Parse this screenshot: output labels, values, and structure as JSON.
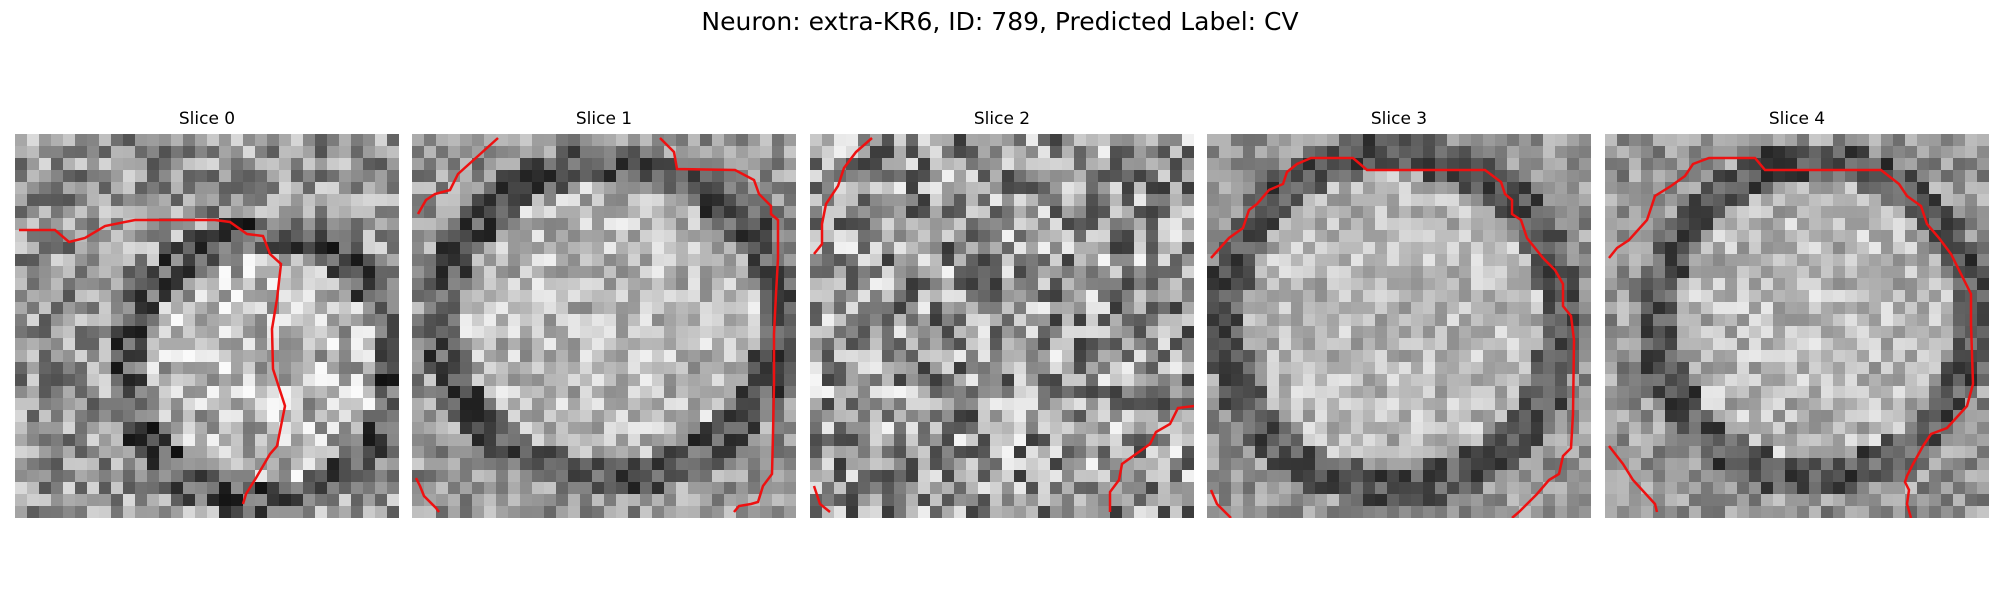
{
  "figure": {
    "title": "Neuron: extra-KR6, ID: 789, Predicted Label: CV",
    "overlay_color": "#ee1111",
    "colormap": "grayscale",
    "slices": [
      {
        "title": "Slice 0"
      },
      {
        "title": "Slice 1"
      },
      {
        "title": "Slice 2"
      },
      {
        "title": "Slice 3"
      },
      {
        "title": "Slice 4"
      }
    ]
  }
}
